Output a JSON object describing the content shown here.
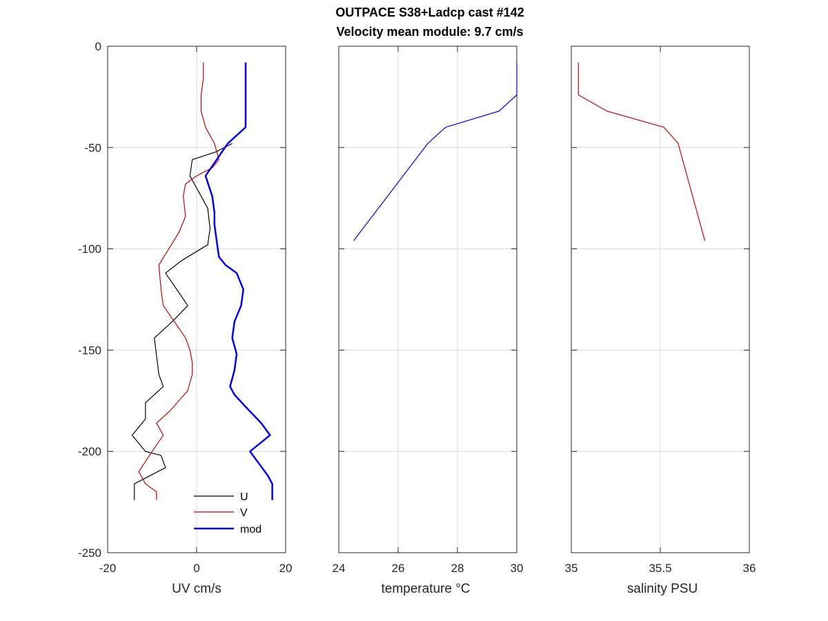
{
  "title_lines": [
    "OUTPACE S38+Ladcp cast #142",
    "Velocity mean module:  9.7 cm/s"
  ],
  "chart_data": [
    {
      "type": "line",
      "id": "uv",
      "xlabel": "UV cm/s",
      "ylabel": "",
      "xlim": [
        -20,
        20
      ],
      "ylim": [
        -250,
        0
      ],
      "xticks": [
        -20,
        0,
        20
      ],
      "yticks": [
        0,
        -50,
        -100,
        -150,
        -200,
        -250
      ],
      "show_yticklabels": true,
      "grid": true,
      "legend_position": "bottom-right",
      "series": [
        {
          "name": "U",
          "color": "#000000",
          "line_width": 1.2,
          "x": [
            8.0,
            4.5,
            -1.0,
            -1.5,
            0.5,
            2.5,
            3.0,
            2.5,
            -3.5,
            -7.0,
            -2.0,
            -5.5,
            -9.5,
            -8.5,
            -7.5,
            -11.5,
            -11.5,
            -14.5,
            -11.5,
            -8.0,
            -7.0,
            -14.0,
            -14.0
          ],
          "y": [
            -48,
            -52,
            -56,
            -64,
            -72,
            -80,
            -90,
            -98,
            -106,
            -112,
            -128,
            -136,
            -144,
            -162,
            -168,
            -176,
            -184,
            -192,
            -200,
            -202,
            -208,
            -216,
            -224
          ]
        },
        {
          "name": "V",
          "color": "#cc0000",
          "line_width": 1.2,
          "x": [
            1.5,
            1.5,
            1.0,
            1.0,
            2.0,
            4.0,
            5.0,
            3.5,
            0.0,
            -2.5,
            -3.0,
            -2.5,
            -4.0,
            -8.5,
            -8.0,
            -7.5,
            -5.0,
            -2.5,
            -1.5,
            -1.0,
            -1.0,
            -2.0,
            -6.0,
            -9.0,
            -7.5,
            -10.0,
            -13.0,
            -11.5,
            -9.0,
            -9.0
          ],
          "y": [
            -8,
            -16,
            -24,
            -32,
            -40,
            -48,
            -56,
            -60,
            -64,
            -68,
            -74,
            -84,
            -92,
            -108,
            -120,
            -128,
            -136,
            -144,
            -150,
            -156,
            -162,
            -170,
            -180,
            -186,
            -192,
            -200,
            -210,
            -216,
            -220,
            -224
          ]
        },
        {
          "name": "mod",
          "color": "#0000ff",
          "line_width": 2.5,
          "x": [
            11.0,
            11.0,
            11.0,
            7.0,
            4.5,
            2.0,
            3.5,
            4.0,
            4.0,
            4.5,
            5.0,
            6.5,
            9.0,
            10.5,
            10.0,
            8.5,
            8.0,
            9.0,
            8.5,
            8.0,
            7.5,
            8.5,
            11.0,
            14.5,
            16.5,
            12.0,
            16.0,
            17.0,
            17.0
          ],
          "y": [
            -8,
            -24,
            -40,
            -48,
            -56,
            -64,
            -74,
            -82,
            -88,
            -96,
            -104,
            -108,
            -112,
            -120,
            -128,
            -136,
            -144,
            -152,
            -160,
            -164,
            -168,
            -172,
            -178,
            -186,
            -192,
            -200,
            -212,
            -216,
            -224
          ]
        }
      ]
    },
    {
      "type": "line",
      "id": "temperature",
      "xlabel": "temperature °C",
      "ylabel": "",
      "xlim": [
        24,
        30
      ],
      "ylim": [
        -250,
        0
      ],
      "xticks": [
        24,
        26,
        28,
        30
      ],
      "yticks": [
        0,
        -50,
        -100,
        -150,
        -200,
        -250
      ],
      "show_yticklabels": false,
      "grid": true,
      "series": [
        {
          "color": "#0000ff",
          "line_width": 1.2,
          "x": [
            30.0,
            30.0,
            30.0,
            29.4,
            27.6,
            27.0,
            24.5
          ],
          "y": [
            -8,
            -16,
            -24,
            -32,
            -40,
            -48,
            -96
          ]
        }
      ]
    },
    {
      "type": "line",
      "id": "salinity",
      "xlabel": "salinity PSU",
      "ylabel": "",
      "xlim": [
        35,
        36
      ],
      "ylim": [
        -250,
        0
      ],
      "xticks": [
        35,
        35.5,
        36
      ],
      "xticklabels": [
        "35",
        "35.5",
        "36"
      ],
      "yticks": [
        0,
        -50,
        -100,
        -150,
        -200,
        -250
      ],
      "show_yticklabels": false,
      "grid": true,
      "series": [
        {
          "color": "#cc0000",
          "line_width": 1.2,
          "x": [
            35.04,
            35.04,
            35.04,
            35.2,
            35.52,
            35.6,
            35.65,
            35.75
          ],
          "y": [
            -8,
            -16,
            -24,
            -32,
            -40,
            -48,
            -64,
            -96
          ]
        }
      ]
    }
  ]
}
